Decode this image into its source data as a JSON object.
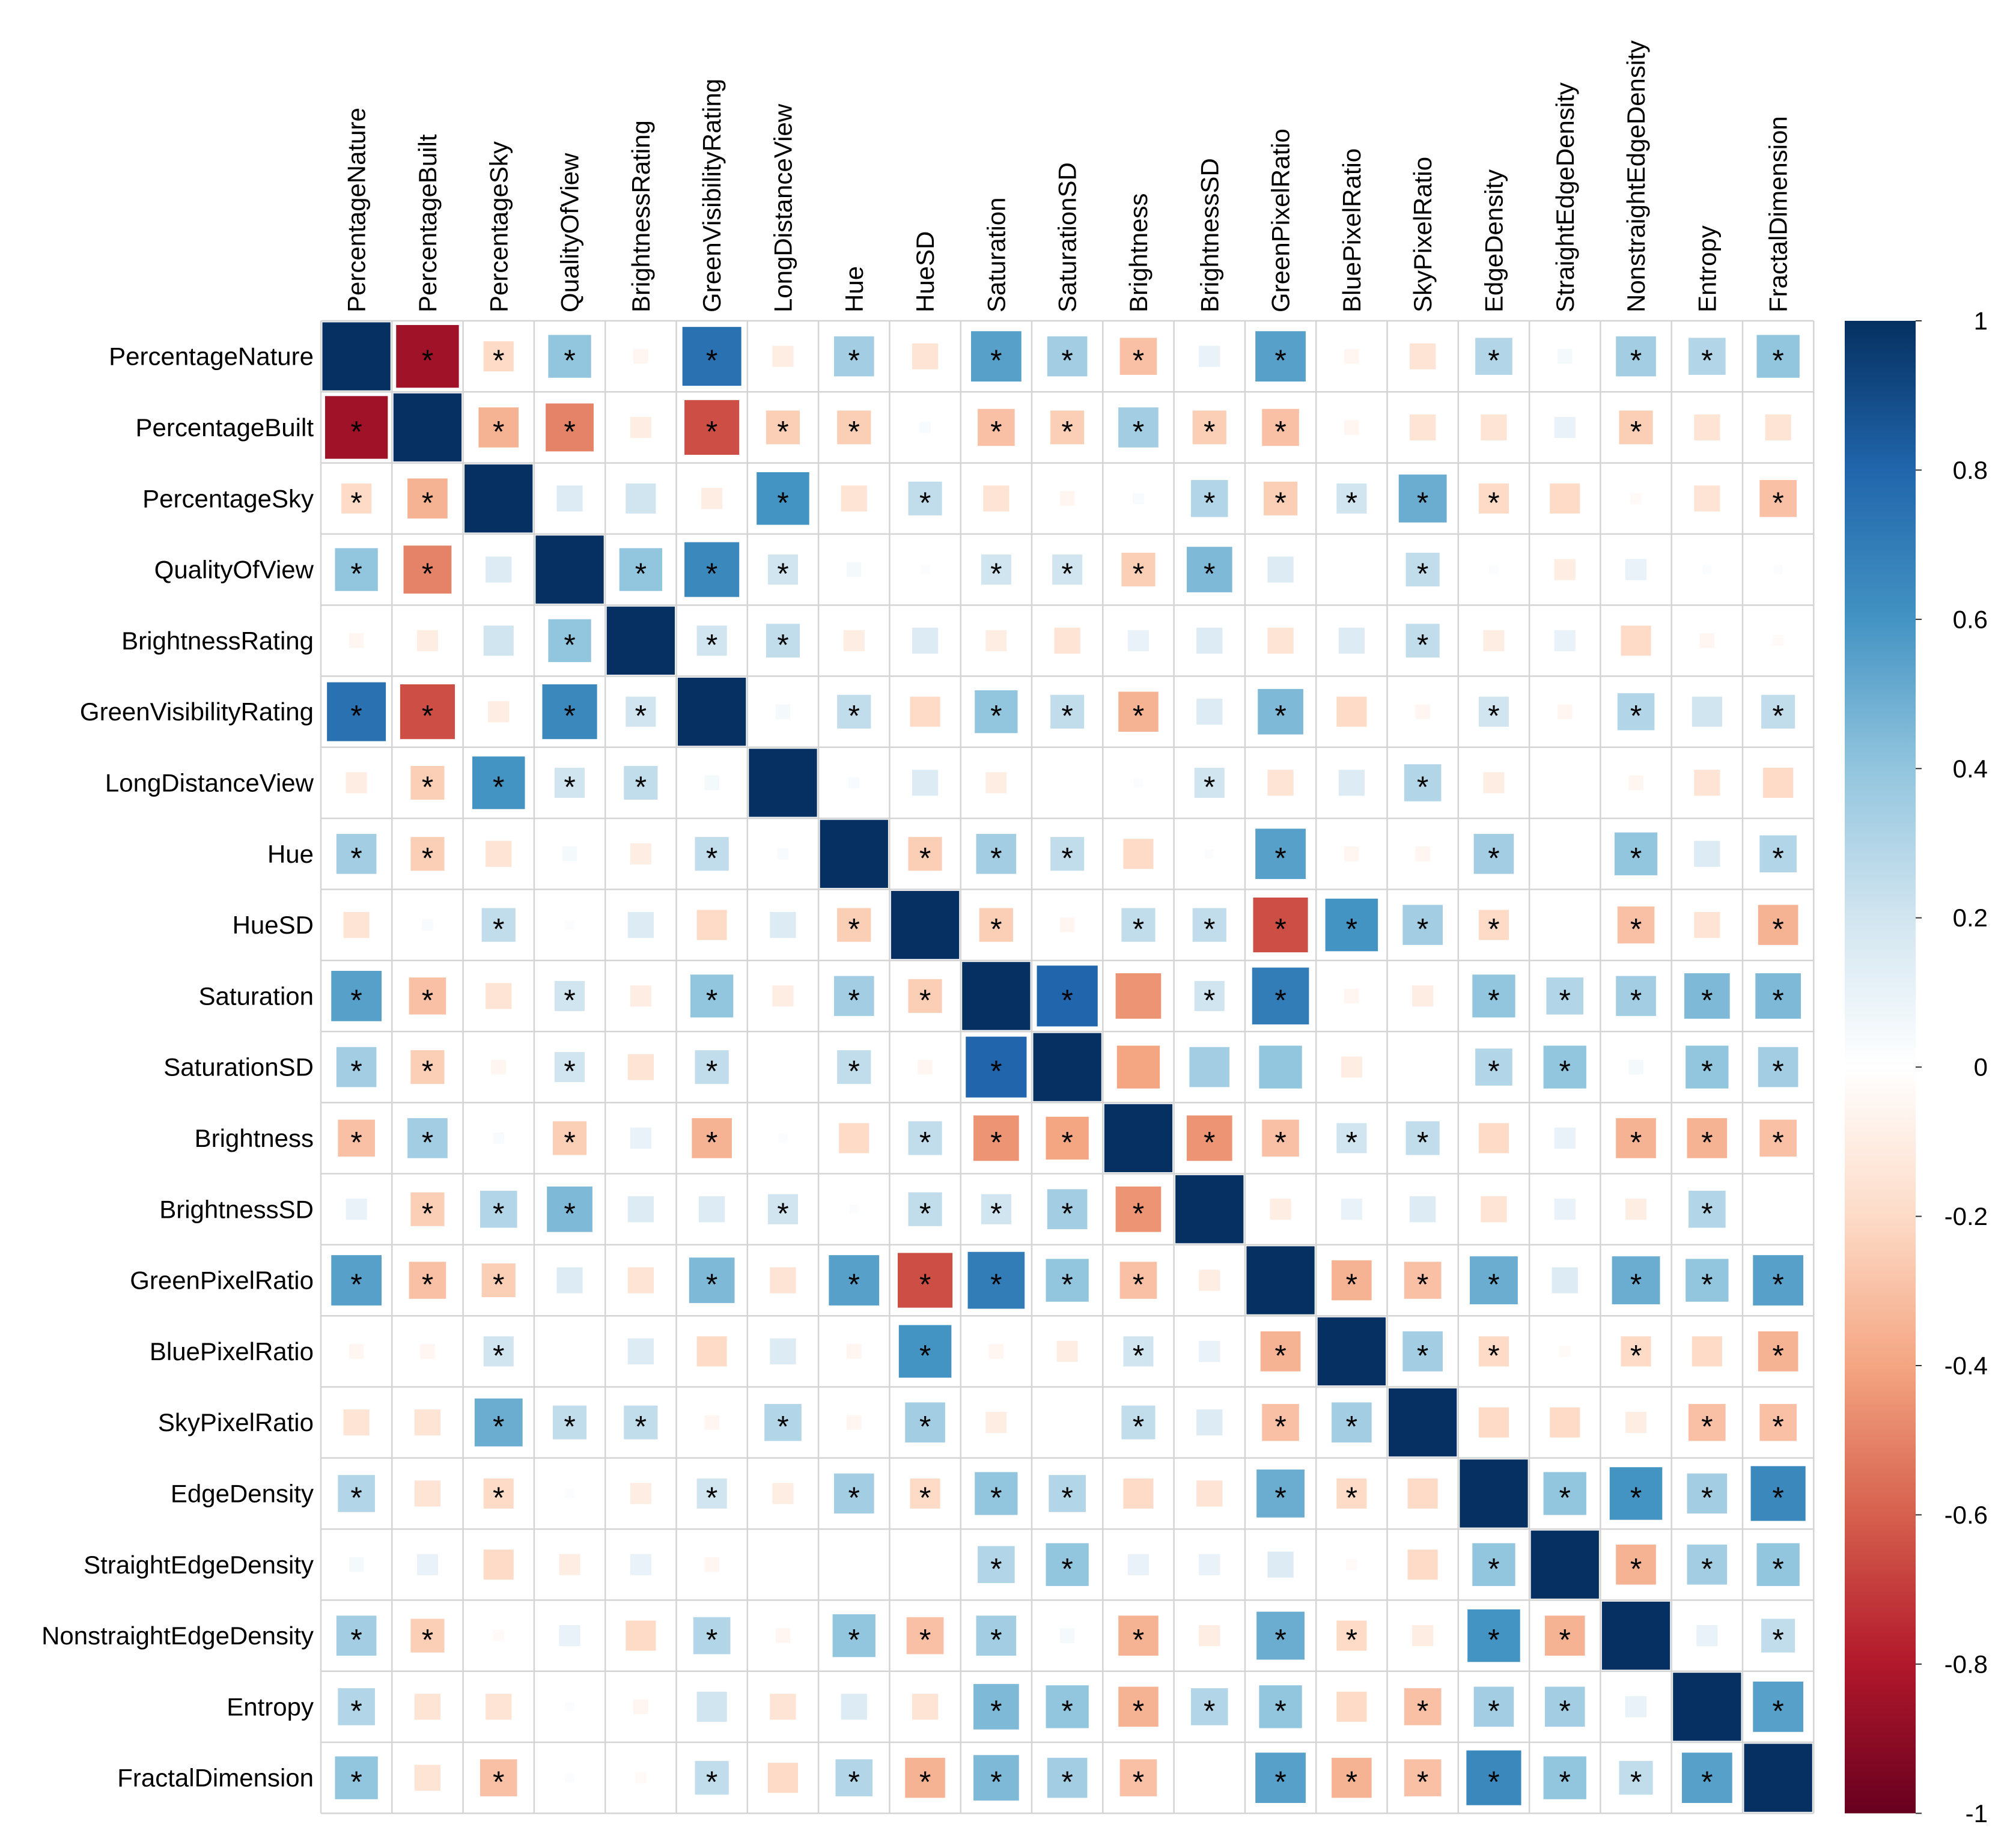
{
  "chart_data": {
    "type": "heatmap",
    "title": "",
    "variables": [
      "PercentageNature",
      "PercentageBuilt",
      "PercentageSky",
      "QualityOfView",
      "BrightnessRating",
      "GreenVisibilityRating",
      "LongDistanceView",
      "Hue",
      "HueSD",
      "Saturation",
      "SaturationSD",
      "Brightness",
      "BrightnessSD",
      "GreenPixelRatio",
      "BluePixelRatio",
      "SkyPixelRatio",
      "EdgeDensity",
      "StraightEdgeDensity",
      "NonstraightEdgeDensity",
      "Entropy",
      "FractalDimension"
    ],
    "values": [
      [
        1,
        -0.85,
        -0.2,
        0.4,
        -0.05,
        0.75,
        -0.1,
        0.35,
        -0.15,
        0.55,
        0.35,
        -0.3,
        0.1,
        0.55,
        -0.05,
        -0.15,
        0.3,
        0.05,
        0.35,
        0.3,
        0.4
      ],
      [
        -0.85,
        1,
        -0.35,
        -0.5,
        -0.1,
        -0.65,
        -0.25,
        -0.25,
        0.03,
        -0.3,
        -0.25,
        0.35,
        -0.25,
        -0.3,
        -0.05,
        -0.15,
        -0.15,
        0.1,
        -0.25,
        -0.15,
        -0.15
      ],
      [
        -0.2,
        -0.35,
        1,
        0.15,
        0.2,
        -0.1,
        0.6,
        -0.15,
        0.25,
        -0.15,
        -0.05,
        0.03,
        0.3,
        -0.25,
        0.2,
        0.5,
        -0.2,
        -0.2,
        -0.03,
        -0.15,
        -0.3
      ],
      [
        0.4,
        -0.5,
        0.15,
        1,
        0.4,
        0.65,
        0.2,
        0.05,
        0.02,
        0.2,
        0.2,
        -0.25,
        0.45,
        0.15,
        0,
        0.25,
        0.02,
        -0.1,
        0.1,
        0.02,
        0.02
      ],
      [
        -0.05,
        -0.1,
        0.2,
        0.4,
        1,
        0.2,
        0.25,
        -0.1,
        0.15,
        -0.1,
        -0.15,
        0.1,
        0.15,
        -0.15,
        0.15,
        0.25,
        -0.1,
        0.1,
        -0.2,
        -0.05,
        -0.03
      ],
      [
        0.75,
        -0.65,
        -0.1,
        0.65,
        0.2,
        1,
        0.05,
        0.25,
        -0.2,
        0.4,
        0.25,
        -0.35,
        0.15,
        0.45,
        -0.2,
        -0.05,
        0.2,
        -0.05,
        0.3,
        0.2,
        0.25
      ],
      [
        -0.1,
        -0.25,
        0.6,
        0.2,
        0.25,
        0.05,
        1,
        0.03,
        0.15,
        -0.1,
        0,
        0.02,
        0.2,
        -0.15,
        0.15,
        0.3,
        -0.1,
        0,
        -0.05,
        -0.15,
        -0.2
      ],
      [
        0.35,
        -0.25,
        -0.15,
        0.05,
        -0.1,
        0.25,
        0.03,
        1,
        -0.25,
        0.35,
        0.25,
        -0.2,
        0.02,
        0.55,
        -0.05,
        -0.05,
        0.35,
        0,
        0.4,
        0.15,
        0.3
      ],
      [
        -0.15,
        0.03,
        0.25,
        0.02,
        0.15,
        -0.2,
        0.15,
        -0.25,
        1,
        -0.25,
        -0.05,
        0.25,
        0.25,
        -0.65,
        0.6,
        0.35,
        -0.2,
        0,
        -0.3,
        -0.15,
        -0.35
      ],
      [
        0.55,
        -0.3,
        -0.15,
        0.2,
        -0.1,
        0.4,
        -0.1,
        0.35,
        -0.25,
        1,
        0.8,
        -0.45,
        0.2,
        0.7,
        -0.05,
        -0.1,
        0.4,
        0.3,
        0.35,
        0.45,
        0.45
      ],
      [
        0.35,
        -0.25,
        -0.05,
        0.2,
        -0.15,
        0.25,
        0,
        0.25,
        -0.05,
        0.8,
        1,
        -0.4,
        0.35,
        0.4,
        -0.1,
        0,
        0.3,
        0.4,
        0.05,
        0.4,
        0.35
      ],
      [
        -0.3,
        0.35,
        0.03,
        -0.25,
        0.1,
        -0.35,
        0.02,
        -0.2,
        0.25,
        -0.45,
        -0.4,
        1,
        -0.45,
        -0.3,
        0.2,
        0.25,
        -0.2,
        0.1,
        -0.35,
        -0.35,
        -0.3
      ],
      [
        0.1,
        -0.25,
        0.3,
        0.45,
        0.15,
        0.15,
        0.2,
        0.02,
        0.25,
        0.2,
        0.35,
        -0.45,
        1,
        -0.1,
        0.1,
        0.15,
        -0.15,
        0.1,
        -0.1,
        0.3,
        0
      ],
      [
        0.55,
        -0.3,
        -0.25,
        0.15,
        -0.15,
        0.45,
        -0.15,
        0.55,
        -0.65,
        0.7,
        0.4,
        -0.3,
        -0.1,
        1,
        -0.35,
        -0.3,
        0.5,
        0.15,
        0.5,
        0.4,
        0.55
      ],
      [
        -0.05,
        -0.05,
        0.2,
        0,
        0.15,
        -0.2,
        0.15,
        -0.05,
        0.6,
        -0.05,
        -0.1,
        0.2,
        0.1,
        -0.35,
        1,
        0.35,
        -0.2,
        -0.03,
        -0.2,
        -0.2,
        -0.35
      ],
      [
        -0.15,
        -0.15,
        0.5,
        0.25,
        0.25,
        -0.05,
        0.3,
        -0.05,
        0.35,
        -0.1,
        0,
        0.25,
        0.15,
        -0.3,
        0.35,
        1,
        -0.2,
        -0.2,
        -0.1,
        -0.3,
        -0.3
      ],
      [
        0.3,
        -0.15,
        -0.2,
        0.02,
        -0.1,
        0.2,
        -0.1,
        0.35,
        -0.2,
        0.4,
        0.3,
        -0.2,
        -0.15,
        0.5,
        -0.2,
        -0.2,
        1,
        0.4,
        0.6,
        0.35,
        0.65
      ],
      [
        0.05,
        0.1,
        -0.2,
        -0.1,
        0.1,
        -0.05,
        0,
        0,
        0,
        0.3,
        0.4,
        0.1,
        0.1,
        0.15,
        -0.03,
        -0.2,
        0.4,
        1,
        -0.35,
        0.35,
        0.4
      ],
      [
        0.35,
        -0.25,
        -0.03,
        0.1,
        -0.2,
        0.3,
        -0.05,
        0.4,
        -0.3,
        0.35,
        0.05,
        -0.35,
        -0.1,
        0.5,
        -0.2,
        -0.1,
        0.6,
        -0.35,
        1,
        0.1,
        0.25
      ],
      [
        0.3,
        -0.15,
        -0.15,
        0.02,
        -0.05,
        0.2,
        -0.15,
        0.15,
        -0.15,
        0.45,
        0.4,
        -0.35,
        0.3,
        0.4,
        -0.2,
        -0.3,
        0.35,
        0.35,
        0.1,
        1,
        0.55
      ],
      [
        0.4,
        -0.15,
        -0.3,
        0.02,
        -0.03,
        0.25,
        -0.2,
        0.3,
        -0.35,
        0.45,
        0.35,
        -0.3,
        0,
        0.55,
        -0.35,
        -0.3,
        0.65,
        0.4,
        0.25,
        0.55,
        1
      ]
    ],
    "significant": [
      [
        0,
        1,
        1,
        1,
        0,
        1,
        0,
        1,
        0,
        1,
        1,
        1,
        0,
        1,
        0,
        0,
        1,
        0,
        1,
        1,
        1
      ],
      [
        1,
        0,
        1,
        1,
        0,
        1,
        1,
        1,
        0,
        1,
        1,
        1,
        1,
        1,
        0,
        0,
        0,
        0,
        1,
        0,
        0
      ],
      [
        1,
        1,
        0,
        0,
        0,
        0,
        1,
        0,
        1,
        0,
        0,
        0,
        1,
        1,
        1,
        1,
        1,
        0,
        0,
        0,
        1
      ],
      [
        1,
        1,
        0,
        0,
        1,
        1,
        1,
        0,
        0,
        1,
        1,
        1,
        1,
        0,
        0,
        1,
        0,
        0,
        0,
        0,
        0
      ],
      [
        0,
        0,
        0,
        1,
        0,
        1,
        1,
        0,
        0,
        0,
        0,
        0,
        0,
        0,
        0,
        1,
        0,
        0,
        0,
        0,
        0
      ],
      [
        1,
        1,
        0,
        1,
        1,
        0,
        0,
        1,
        0,
        1,
        1,
        1,
        0,
        1,
        0,
        0,
        1,
        0,
        1,
        0,
        1
      ],
      [
        0,
        1,
        1,
        1,
        1,
        0,
        0,
        0,
        0,
        0,
        0,
        0,
        1,
        0,
        0,
        1,
        0,
        0,
        0,
        0,
        0
      ],
      [
        1,
        1,
        0,
        0,
        0,
        1,
        0,
        0,
        1,
        1,
        1,
        0,
        0,
        1,
        0,
        0,
        1,
        0,
        1,
        0,
        1
      ],
      [
        0,
        0,
        1,
        0,
        0,
        0,
        0,
        1,
        0,
        1,
        0,
        1,
        1,
        1,
        1,
        1,
        1,
        0,
        1,
        0,
        1
      ],
      [
        1,
        1,
        0,
        1,
        0,
        1,
        0,
        1,
        1,
        0,
        1,
        0,
        1,
        1,
        0,
        0,
        1,
        1,
        1,
        1,
        1
      ],
      [
        1,
        1,
        0,
        1,
        0,
        1,
        0,
        1,
        0,
        1,
        0,
        0,
        0,
        0,
        0,
        0,
        1,
        1,
        0,
        1,
        1
      ],
      [
        1,
        1,
        0,
        1,
        0,
        1,
        0,
        0,
        1,
        1,
        1,
        0,
        1,
        1,
        1,
        1,
        0,
        0,
        1,
        1,
        1
      ],
      [
        0,
        1,
        1,
        1,
        0,
        0,
        1,
        0,
        1,
        1,
        1,
        1,
        0,
        0,
        0,
        0,
        0,
        0,
        0,
        1,
        0
      ],
      [
        1,
        1,
        1,
        0,
        0,
        1,
        0,
        1,
        1,
        1,
        1,
        1,
        0,
        0,
        1,
        1,
        1,
        0,
        1,
        1,
        1
      ],
      [
        0,
        0,
        1,
        0,
        0,
        0,
        0,
        0,
        1,
        0,
        0,
        1,
        0,
        1,
        0,
        1,
        1,
        0,
        1,
        0,
        1
      ],
      [
        0,
        0,
        1,
        1,
        1,
        0,
        1,
        0,
        1,
        0,
        0,
        1,
        0,
        1,
        1,
        0,
        0,
        0,
        0,
        1,
        1
      ],
      [
        1,
        0,
        1,
        0,
        0,
        1,
        0,
        1,
        1,
        1,
        1,
        0,
        0,
        1,
        1,
        0,
        0,
        1,
        1,
        1,
        1
      ],
      [
        0,
        0,
        0,
        0,
        0,
        0,
        0,
        0,
        0,
        1,
        1,
        0,
        0,
        0,
        0,
        0,
        1,
        0,
        1,
        1,
        1
      ],
      [
        1,
        1,
        0,
        0,
        0,
        1,
        0,
        1,
        1,
        1,
        0,
        1,
        0,
        1,
        1,
        0,
        1,
        1,
        0,
        0,
        1
      ],
      [
        1,
        0,
        0,
        0,
        0,
        0,
        0,
        0,
        0,
        1,
        1,
        1,
        1,
        1,
        0,
        1,
        1,
        1,
        0,
        0,
        1
      ],
      [
        1,
        0,
        1,
        0,
        0,
        1,
        0,
        1,
        1,
        1,
        1,
        1,
        0,
        1,
        1,
        1,
        1,
        1,
        1,
        1,
        0
      ]
    ],
    "significance_marker": "*",
    "colorbar": {
      "range": [
        -1,
        1
      ],
      "ticks": [
        "1",
        "0.8",
        "0.6",
        "0.4",
        "0.2",
        "0",
        "-0.2",
        "-0.4",
        "-0.6",
        "-0.8",
        "-1"
      ],
      "colors": [
        "#67001F",
        "#B2182B",
        "#D6604D",
        "#F4A582",
        "#FDDBC7",
        "#FFFFFF",
        "#D1E5F0",
        "#92C5DE",
        "#4393C3",
        "#2166AC",
        "#053061"
      ]
    },
    "grid": true,
    "xlabel": "",
    "ylabel": ""
  }
}
